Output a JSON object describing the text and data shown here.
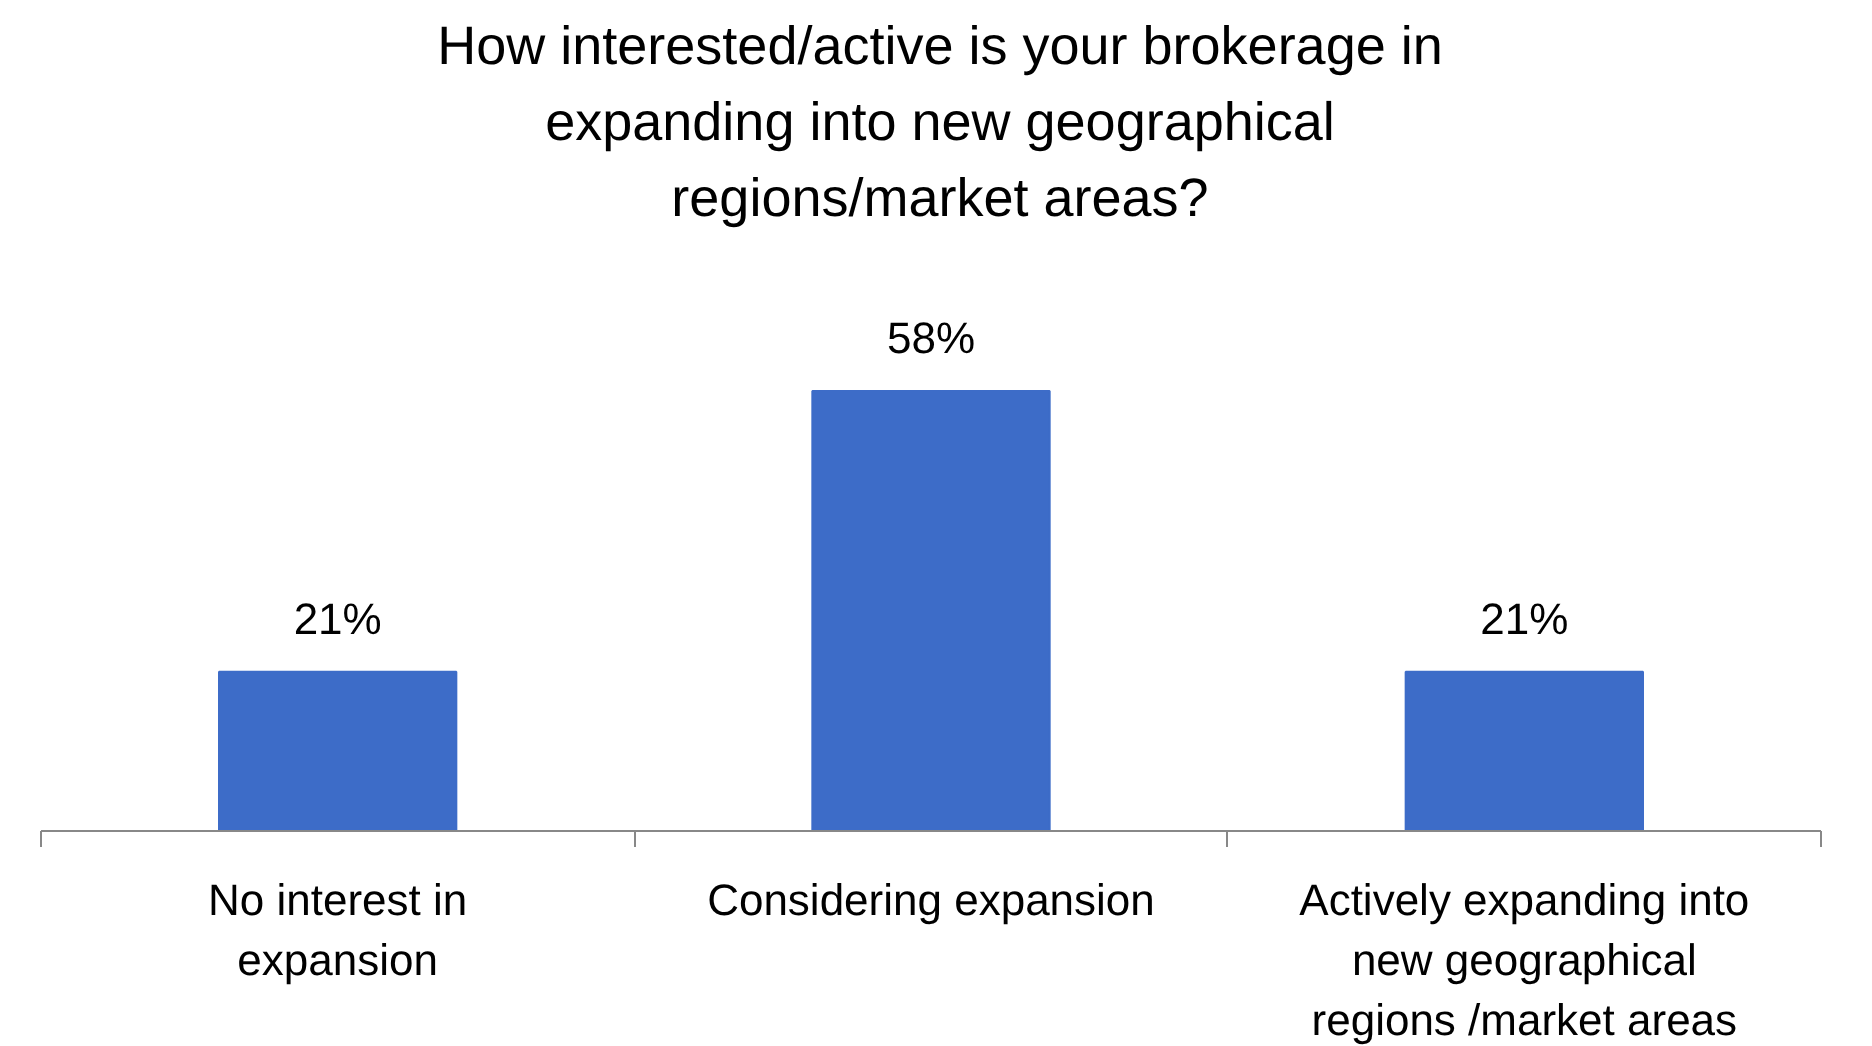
{
  "chart_data": {
    "type": "bar",
    "title": "How interested/active is your brokerage in expanding into new geographical regions/market areas?",
    "categories": [
      "No interest in expansion",
      "Considering expansion",
      "Actively expanding into new geographical regions /market areas"
    ],
    "values": [
      21,
      58,
      21
    ],
    "value_labels": [
      "21%",
      "58%",
      "21%"
    ],
    "color": "#3d6cc8",
    "grid": false
  }
}
